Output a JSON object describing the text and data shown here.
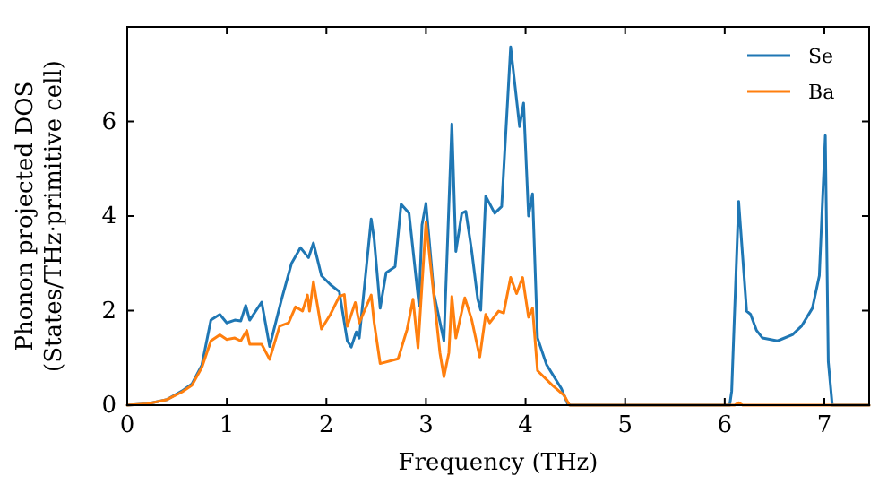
{
  "chart_data": {
    "type": "line",
    "xlabel": "Frequency (THz)",
    "ylabel": "Phonon projected DOS\n(States/THz·primitive cell)",
    "xlim": [
      0,
      7.45
    ],
    "ylim": [
      0,
      8
    ],
    "xticks": [
      0,
      1,
      2,
      3,
      4,
      5,
      6,
      7
    ],
    "yticks": [
      0,
      2,
      4,
      6
    ],
    "grid": false,
    "legend": "top right",
    "marker": "none",
    "line_style": "solid",
    "series": [
      {
        "name": "Se",
        "color": "#1f77b4",
        "x": [
          0,
          0.2,
          0.4,
          0.55,
          0.65,
          0.75,
          0.84,
          0.93,
          1.0,
          1.08,
          1.14,
          1.19,
          1.23,
          1.35,
          1.43,
          1.55,
          1.65,
          1.74,
          1.82,
          1.87,
          1.95,
          2.04,
          2.13,
          2.21,
          2.25,
          2.3,
          2.33,
          2.45,
          2.48,
          2.54,
          2.6,
          2.69,
          2.75,
          2.83,
          2.93,
          2.96,
          3.0,
          3.08,
          3.18,
          3.26,
          3.3,
          3.36,
          3.4,
          3.46,
          3.52,
          3.55,
          3.6,
          3.69,
          3.76,
          3.85,
          3.94,
          3.98,
          4.03,
          4.07,
          4.12,
          4.21,
          4.36,
          4.42,
          4.45,
          6.05,
          6.07,
          6.14,
          6.22,
          6.26,
          6.32,
          6.38,
          6.53,
          6.68,
          6.77,
          6.88,
          6.95,
          7.01,
          7.04,
          7.08,
          7.45
        ],
        "values": [
          0,
          0.03,
          0.12,
          0.3,
          0.45,
          0.85,
          1.8,
          1.92,
          1.74,
          1.8,
          1.78,
          2.11,
          1.8,
          2.18,
          1.24,
          2.24,
          3.0,
          3.33,
          3.12,
          3.43,
          2.74,
          2.55,
          2.4,
          1.36,
          1.23,
          1.55,
          1.42,
          3.94,
          3.5,
          2.05,
          2.8,
          2.93,
          4.25,
          4.06,
          2.11,
          3.81,
          4.27,
          2.36,
          1.36,
          5.95,
          3.25,
          4.06,
          4.1,
          3.25,
          2.24,
          2.01,
          4.42,
          4.06,
          4.2,
          7.58,
          5.89,
          6.39,
          4.0,
          4.47,
          1.42,
          0.86,
          0.35,
          0.04,
          0,
          0,
          0.3,
          4.31,
          1.99,
          1.92,
          1.58,
          1.42,
          1.36,
          1.49,
          1.67,
          2.05,
          2.74,
          5.7,
          0.92,
          0,
          0
        ]
      },
      {
        "name": "Ba",
        "color": "#ff7f0e",
        "x": [
          0,
          0.2,
          0.4,
          0.55,
          0.65,
          0.75,
          0.84,
          0.93,
          1.0,
          1.08,
          1.14,
          1.2,
          1.23,
          1.35,
          1.43,
          1.53,
          1.62,
          1.69,
          1.76,
          1.81,
          1.83,
          1.87,
          1.95,
          2.04,
          2.13,
          2.18,
          2.21,
          2.29,
          2.33,
          2.45,
          2.48,
          2.54,
          2.72,
          2.81,
          2.87,
          2.92,
          3.0,
          3.07,
          3.14,
          3.18,
          3.23,
          3.26,
          3.3,
          3.39,
          3.46,
          3.54,
          3.6,
          3.64,
          3.73,
          3.78,
          3.85,
          3.91,
          3.97,
          4.03,
          4.07,
          4.12,
          4.27,
          4.39,
          4.44,
          6.1,
          6.14,
          6.18,
          7.45
        ],
        "values": [
          0,
          0.03,
          0.12,
          0.28,
          0.42,
          0.8,
          1.36,
          1.49,
          1.39,
          1.42,
          1.36,
          1.58,
          1.29,
          1.29,
          0.97,
          1.67,
          1.74,
          2.08,
          1.99,
          2.33,
          1.99,
          2.61,
          1.61,
          1.92,
          2.3,
          2.34,
          1.67,
          2.17,
          1.74,
          2.33,
          1.74,
          0.88,
          0.98,
          1.6,
          2.24,
          1.21,
          3.87,
          2.49,
          1.11,
          0.6,
          1.11,
          2.3,
          1.42,
          2.27,
          1.8,
          1.02,
          1.92,
          1.74,
          1.99,
          1.95,
          2.7,
          2.36,
          2.7,
          1.86,
          2.05,
          0.73,
          0.42,
          0.2,
          0,
          0,
          0.05,
          0,
          0
        ]
      }
    ]
  }
}
